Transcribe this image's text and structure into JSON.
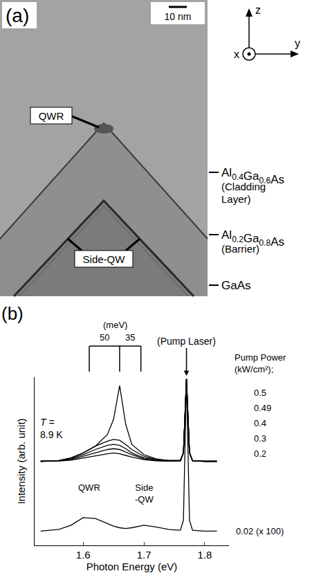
{
  "panel_a": {
    "label": "(a)",
    "scale_bar": "10 nm",
    "axes": [
      "x",
      "y",
      "z"
    ],
    "callouts": [
      {
        "text": "QWR"
      },
      {
        "text": "Side-QW"
      }
    ],
    "layers": [
      {
        "formula": [
          {
            "element": "Al",
            "sub": "0.4"
          },
          {
            "element": "Ga",
            "sub": "0.6"
          },
          {
            "element": "As"
          }
        ],
        "note": "(Cladding Layer)"
      },
      {
        "formula": [
          {
            "element": "Al",
            "sub": "0.2"
          },
          {
            "element": "Ga",
            "sub": "0.8"
          },
          {
            "element": "As"
          }
        ],
        "note": "(Barrier)"
      },
      {
        "formula": [
          {
            "element": "GaAs"
          }
        ]
      }
    ]
  },
  "chart_data": {
    "type": "line",
    "label": "(b)",
    "xlabel": "Photon Energy (eV)",
    "ylabel": "Intensity (arb. unit)",
    "xlim": [
      1.52,
      1.84
    ],
    "xticks": [
      1.6,
      1.7,
      1.8
    ],
    "ylim": [
      0,
      10
    ],
    "yticks": [],
    "grid": false,
    "tick_labels": "x",
    "x": [
      1.53,
      1.56,
      1.58,
      1.6,
      1.62,
      1.64,
      1.65,
      1.66,
      1.67,
      1.68,
      1.7,
      1.72,
      1.74,
      1.76,
      1.765,
      1.77,
      1.775,
      1.78,
      1.8,
      1.82
    ],
    "series": [
      {
        "name": "0.5",
        "color": "#000000",
        "values": [
          5.0,
          5.05,
          5.2,
          5.5,
          5.9,
          6.6,
          7.5,
          9.5,
          7.2,
          6.0,
          5.4,
          5.15,
          5.05,
          5.05,
          5.5,
          9.9,
          5.5,
          5.05,
          5.0,
          5.0
        ]
      },
      {
        "name": "0.49",
        "color": "#000000",
        "values": [
          5.0,
          5.05,
          5.2,
          5.5,
          5.9,
          6.2,
          6.3,
          6.25,
          6.0,
          5.7,
          5.3,
          5.1,
          5.05,
          5.05,
          5.5,
          9.9,
          5.5,
          5.05,
          5.0,
          5.0
        ]
      },
      {
        "name": "0.4",
        "color": "#000000",
        "values": [
          5.0,
          5.05,
          5.15,
          5.4,
          5.7,
          5.95,
          6.0,
          5.95,
          5.75,
          5.5,
          5.2,
          5.1,
          5.05,
          5.05,
          5.5,
          9.9,
          5.5,
          5.05,
          5.0,
          5.0
        ]
      },
      {
        "name": "0.3",
        "color": "#000000",
        "values": [
          5.0,
          5.03,
          5.1,
          5.3,
          5.5,
          5.7,
          5.75,
          5.7,
          5.55,
          5.4,
          5.15,
          5.05,
          5.02,
          5.03,
          5.5,
          9.9,
          5.5,
          5.03,
          5.0,
          5.0
        ]
      },
      {
        "name": "0.2",
        "color": "#000000",
        "values": [
          5.0,
          5.02,
          5.07,
          5.2,
          5.35,
          5.45,
          5.5,
          5.45,
          5.35,
          5.25,
          5.1,
          5.03,
          5.01,
          5.02,
          5.5,
          9.9,
          5.5,
          5.02,
          5.0,
          5.0
        ]
      },
      {
        "name": "0.02",
        "note": "(x 100)",
        "color": "#000000",
        "values": [
          0.85,
          0.95,
          1.2,
          1.65,
          1.6,
          1.3,
          1.15,
          1.05,
          1.0,
          1.05,
          1.2,
          1.1,
          0.95,
          0.9,
          1.5,
          9.9,
          1.5,
          0.9,
          0.85,
          0.85
        ]
      }
    ],
    "annotations": {
      "bracket": {
        "title": "(meV)",
        "x": [
          1.61,
          1.66,
          1.695
        ],
        "labels": [
          "50",
          "35"
        ]
      },
      "pump_laser": {
        "text": "(Pump Laser)",
        "x": 1.77
      },
      "temperature": [
        "T =",
        "8.9 K"
      ],
      "legend_title": [
        "Pump Power",
        "(kW/cm²);"
      ],
      "peaks": [
        {
          "lines": [
            "QWR"
          ],
          "x": 1.61
        },
        {
          "lines": [
            "Side",
            "-QW"
          ],
          "x": 1.7
        }
      ]
    }
  }
}
